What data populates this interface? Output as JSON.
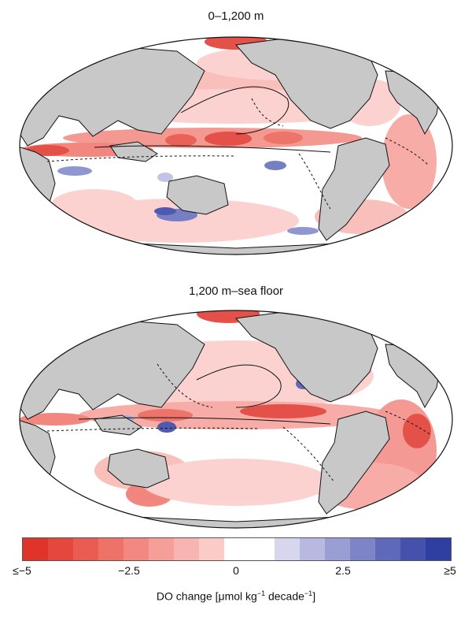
{
  "panels": [
    {
      "title": "0–1,200 m"
    },
    {
      "title": "1,200 m–sea floor"
    }
  ],
  "colorbar": {
    "colors": [
      "#e0332a",
      "#e5473c",
      "#ea5c52",
      "#ef7268",
      "#f38880",
      "#f69e98",
      "#f8b4b0",
      "#fbcbc8",
      "#ffffff",
      "#ffffff",
      "#d6d6ef",
      "#b8b9e1",
      "#9a9ed4",
      "#7d84c8",
      "#5f69ba",
      "#4452ad",
      "#2f3ea1"
    ],
    "ticks": [
      "≤−5",
      "−2.5",
      "0",
      "2.5",
      "≥5"
    ],
    "label_prefix": "DO change [μmol kg",
    "label_sup1": "−1",
    "label_middle": " decade",
    "label_sup2": "−1",
    "label_suffix": "]"
  },
  "colors": {
    "land": "#c8c8c8",
    "ocean": "#ffffff",
    "decline": "#e0332a",
    "increase": "#2f3ea1"
  }
}
